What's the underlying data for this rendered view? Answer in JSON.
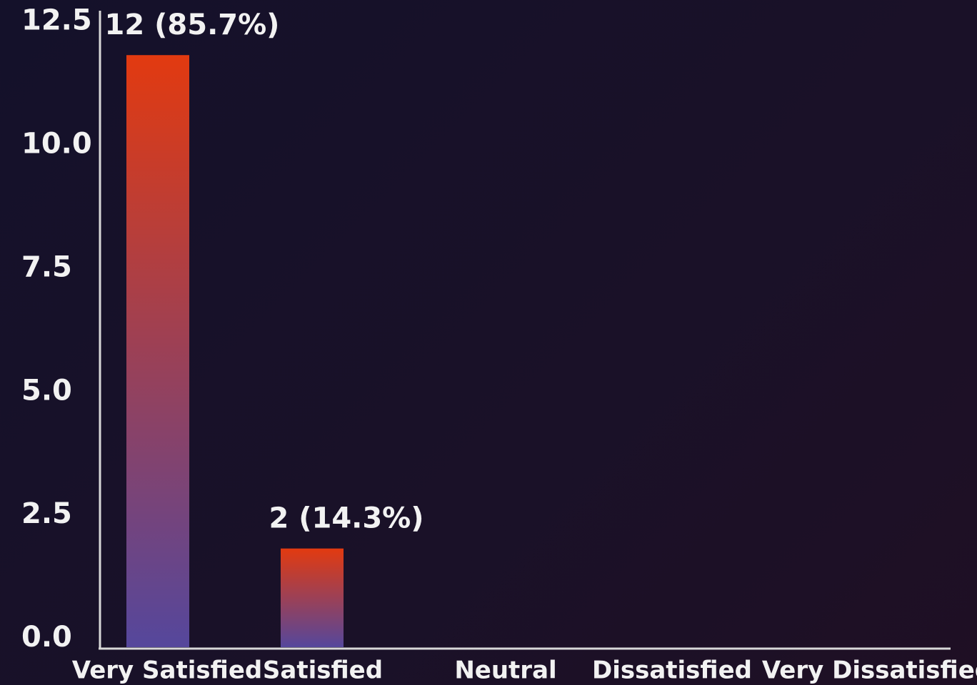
{
  "chart_data": {
    "type": "bar",
    "categories": [
      "Very Satisfied",
      "Satisfied",
      "Neutral",
      "Dissatisfied",
      "Very Dissatisfied"
    ],
    "values": [
      12,
      2,
      0,
      0,
      0
    ],
    "value_labels": [
      "12 (85.7%)",
      "2 (14.3%)",
      null,
      null,
      null
    ],
    "color_top": "#e23a10",
    "color_bottom": "#55479c",
    "ylim": [
      0,
      12.9
    ],
    "yticks": [
      {
        "value": 0,
        "label": "0.0"
      },
      2.5,
      {
        "value": 5,
        "label": "5.0"
      },
      7.5,
      {
        "value": 10,
        "label": "10.0"
      },
      12.5
    ],
    "grid": false
  }
}
